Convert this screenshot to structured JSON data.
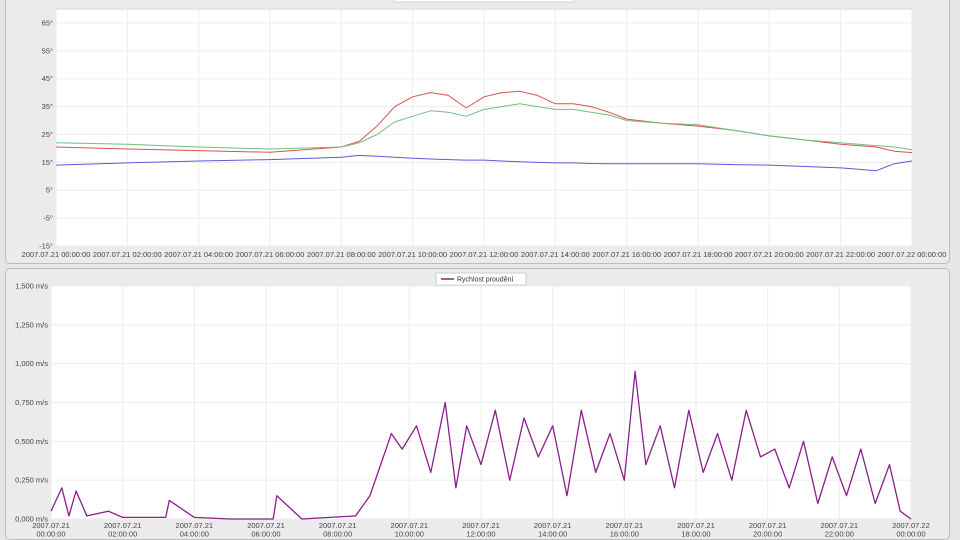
{
  "chart_data": [
    {
      "type": "line",
      "title": "",
      "xlabel": "",
      "ylabel": "",
      "ylim": [
        -15,
        70
      ],
      "yticks": [
        "65°",
        "55°",
        "45°",
        "35°",
        "25°",
        "15°",
        "5°",
        "-5°",
        "-15°"
      ],
      "ytick_values": [
        65,
        55,
        45,
        35,
        25,
        15,
        5,
        -5,
        -15
      ],
      "xticks": [
        "2007.07.21 00:00:00",
        "2007.07.21 02:00:00",
        "2007.07.21 04:00:00",
        "2007.07.21 06:00:00",
        "2007.07.21 08:00:00",
        "2007.07.21 10:00:00",
        "2007.07.21 12:00:00",
        "2007.07.21 14:00:00",
        "2007.07.21 16:00:00",
        "2007.07.21 18:00:00",
        "2007.07.21 20:00:00",
        "2007.07.21 22:00:00",
        "2007.07.22 00:00:00"
      ],
      "x_hours": [
        0,
        2,
        4,
        6,
        8,
        8.5,
        9,
        9.5,
        10,
        10.5,
        11,
        11.5,
        12,
        12.5,
        13,
        13.5,
        14,
        14.5,
        15,
        15.5,
        16,
        17,
        18,
        19,
        20,
        21,
        22,
        22.5,
        23,
        23.5,
        24
      ],
      "grid": true,
      "legend": "top",
      "series": [
        {
          "color": "#d9534f",
          "values": [
            20.5,
            19.8,
            19.2,
            18.6,
            20.5,
            22.5,
            28,
            35,
            38.5,
            40,
            39,
            34.5,
            38.5,
            40,
            40.5,
            39,
            36,
            36,
            35,
            33,
            30.5,
            29,
            28,
            26.5,
            24.5,
            23,
            21.5,
            21,
            20.5,
            19,
            18.5
          ]
        },
        {
          "color": "#6fbf7f",
          "values": [
            22,
            21.5,
            20.5,
            19.8,
            20.5,
            22,
            25,
            29.5,
            31.5,
            33.5,
            33,
            31.5,
            34,
            35,
            36,
            35,
            34,
            34,
            33,
            32,
            30,
            29,
            28.5,
            26.5,
            24.5,
            23,
            22,
            21.5,
            21,
            20.5,
            19.5
          ]
        },
        {
          "color": "#5a5adb",
          "values": [
            14,
            14.8,
            15.5,
            16,
            16.8,
            17.5,
            17.2,
            16.8,
            16.5,
            16.2,
            16,
            15.8,
            15.8,
            15.5,
            15.2,
            15,
            14.8,
            14.8,
            14.6,
            14.5,
            14.5,
            14.5,
            14.5,
            14.2,
            14,
            13.5,
            13,
            12.5,
            12,
            14.5,
            15.5
          ]
        }
      ]
    },
    {
      "type": "line",
      "title": "",
      "xlabel": "",
      "ylabel": "",
      "ylim": [
        0,
        1.5
      ],
      "yticks": [
        "1,500 m/s",
        "1,250 m/s",
        "1,000 m/s",
        "0,750 m/s",
        "0,500 m/s",
        "0,250 m/s",
        "0,000 m/s"
      ],
      "ytick_values": [
        1.5,
        1.25,
        1.0,
        0.75,
        0.5,
        0.25,
        0
      ],
      "xticks": [
        [
          "2007.07.21",
          "00:00:00"
        ],
        [
          "2007.07.21",
          "02:00:00"
        ],
        [
          "2007.07.21",
          "04:00:00"
        ],
        [
          "2007.07.21",
          "06:00:00"
        ],
        [
          "2007.07.21",
          "08:00:00"
        ],
        [
          "2007.07.21",
          "10:00:00"
        ],
        [
          "2007.07.21",
          "12:00:00"
        ],
        [
          "2007.07.21",
          "14:00:00"
        ],
        [
          "2007.07.21",
          "16:00:00"
        ],
        [
          "2007.07.21",
          "18:00:00"
        ],
        [
          "2007.07.21",
          "20:00:00"
        ],
        [
          "2007.07.21",
          "22:00:00"
        ],
        [
          "2007.07.22",
          "00:00:00"
        ]
      ],
      "x_hours": [
        0,
        0.3,
        0.5,
        0.7,
        1,
        1.6,
        2,
        3.2,
        3.3,
        4,
        5,
        6.2,
        6.3,
        7,
        8.5,
        8.9,
        9.2,
        9.5,
        9.8,
        10.2,
        10.6,
        11,
        11.3,
        11.6,
        12,
        12.4,
        12.8,
        13.2,
        13.6,
        14,
        14.4,
        14.8,
        15.2,
        15.6,
        16,
        16.3,
        16.6,
        17,
        17.4,
        17.8,
        18.2,
        18.6,
        19,
        19.4,
        19.8,
        20.2,
        20.6,
        21,
        21.4,
        21.8,
        22.2,
        22.6,
        23,
        23.4,
        23.7,
        24
      ],
      "grid": true,
      "legend": "top",
      "series": [
        {
          "name": "Rychlost proudění",
          "color": "#8b1e8b",
          "values": [
            0.05,
            0.2,
            0.02,
            0.18,
            0.02,
            0.05,
            0.01,
            0.01,
            0.12,
            0.01,
            0.0,
            0.0,
            0.15,
            0.0,
            0.02,
            0.15,
            0.35,
            0.55,
            0.45,
            0.6,
            0.3,
            0.75,
            0.2,
            0.6,
            0.35,
            0.7,
            0.25,
            0.65,
            0.4,
            0.6,
            0.15,
            0.7,
            0.3,
            0.55,
            0.25,
            0.95,
            0.35,
            0.6,
            0.2,
            0.7,
            0.3,
            0.55,
            0.25,
            0.7,
            0.4,
            0.45,
            0.2,
            0.5,
            0.1,
            0.4,
            0.15,
            0.45,
            0.1,
            0.35,
            0.05,
            0.0
          ]
        }
      ]
    }
  ]
}
